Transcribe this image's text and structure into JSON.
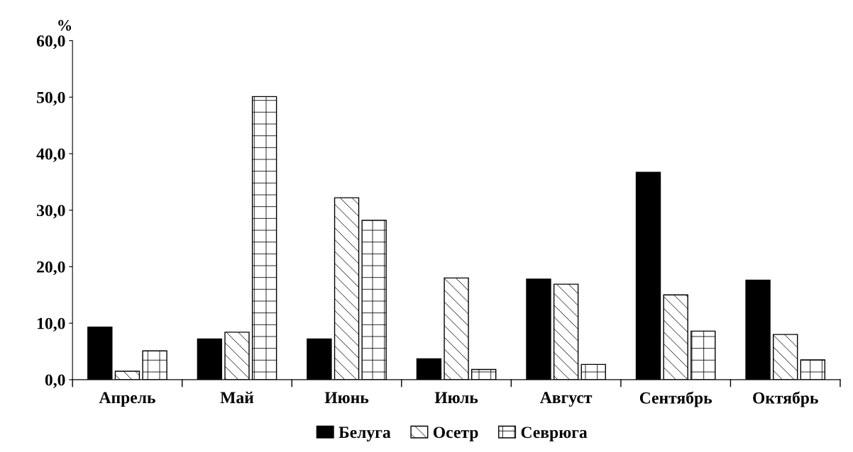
{
  "chart_data": {
    "type": "bar",
    "ylabel": "%",
    "categories": [
      "Апрель",
      "Май",
      "Июнь",
      "Июль",
      "Август",
      "Сентябрь",
      "Октябрь"
    ],
    "series": [
      {
        "name": "Белуга",
        "color": "#000000",
        "values": [
          9.3,
          7.2,
          7.2,
          3.7,
          17.8,
          36.7,
          17.6
        ]
      },
      {
        "name": "Осетр",
        "color": "#000000",
        "values": [
          1.5,
          8.4,
          32.2,
          18.0,
          16.9,
          15.0,
          8.0
        ]
      },
      {
        "name": "Севрюга",
        "color": "#000000",
        "values": [
          5.1,
          50.1,
          28.2,
          1.8,
          2.7,
          8.6,
          3.5
        ]
      }
    ],
    "ylim": [
      0,
      60
    ],
    "yticks": [
      {
        "value": 0,
        "label": "0,0"
      },
      {
        "value": 10,
        "label": "10,0"
      },
      {
        "value": 20,
        "label": "20,0"
      },
      {
        "value": 30,
        "label": "30,0"
      },
      {
        "value": 40,
        "label": "40,0"
      },
      {
        "value": 50,
        "label": "50,0"
      },
      {
        "value": 60,
        "label": "60,0"
      }
    ],
    "grid": false,
    "legend": "bottom"
  }
}
